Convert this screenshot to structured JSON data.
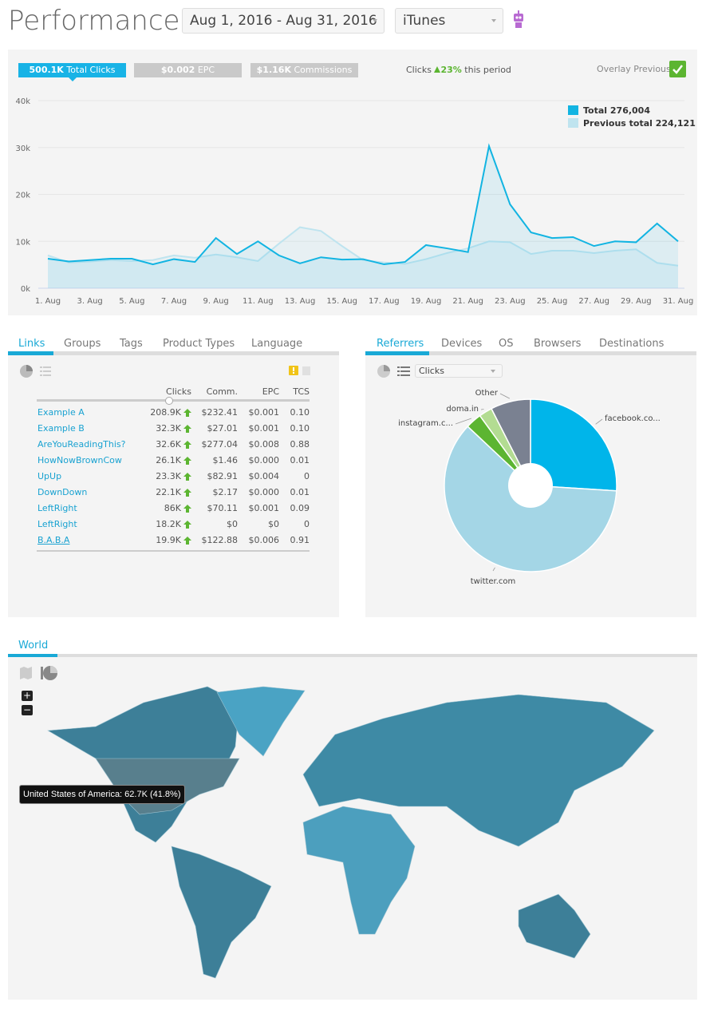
{
  "header": {
    "title": "Performance",
    "date_range": "Aug 1, 2016 - Aug 31, 2016",
    "app": "iTunes"
  },
  "summary": {
    "pills": [
      {
        "value": "500.1K",
        "label": "Total Clicks"
      },
      {
        "value": "$0.002",
        "label": "EPC"
      },
      {
        "value": "$1.16K",
        "label": "Commissions"
      }
    ],
    "change": {
      "label": "Clicks",
      "value": "23%",
      "suffix": "this period"
    },
    "overlay": "Overlay Previous"
  },
  "chart_data": [
    {
      "type": "line",
      "categories": [
        "1. Aug",
        null,
        "3. Aug",
        null,
        "5. Aug",
        null,
        "7. Aug",
        null,
        "9. Aug",
        null,
        "11. Aug",
        null,
        "13. Aug",
        null,
        "15. Aug",
        null,
        "17. Aug",
        null,
        "19. Aug",
        null,
        "21. Aug",
        null,
        "23. Aug",
        null,
        "25. Aug",
        null,
        "27. Aug",
        null,
        "29. Aug",
        null,
        "31. Aug"
      ],
      "ylim": [
        0,
        40000
      ],
      "yticks": [
        {
          "value": 0,
          "label": "0k"
        },
        {
          "value": 10000,
          "label": "10k"
        },
        {
          "value": 20000,
          "label": "20k"
        },
        {
          "value": 30000,
          "label": "30k"
        },
        {
          "value": 40000,
          "label": "40k"
        }
      ],
      "grid": true,
      "legend": "top-right",
      "series": [
        {
          "name": "Total 276,004",
          "color": "#12b4e2",
          "values": [
            6300,
            5700,
            6000,
            6300,
            6300,
            5100,
            6200,
            5600,
            10700,
            7300,
            10000,
            7000,
            5300,
            6600,
            6100,
            6200,
            5100,
            5600,
            9200,
            8500,
            7700,
            30300,
            17900,
            11900,
            10700,
            10900,
            9000,
            10000,
            9800,
            13800,
            10000
          ]
        },
        {
          "name": "Previous total 224,121",
          "color": "#bfe4ef",
          "values": [
            7000,
            5500,
            5700,
            6000,
            5800,
            6000,
            7000,
            6500,
            7200,
            6600,
            5800,
            9500,
            13000,
            12200,
            9000,
            6000,
            5500,
            5200,
            6200,
            7500,
            8500,
            10000,
            9800,
            7300,
            8000,
            8000,
            7500,
            8000,
            8300,
            5400,
            4800
          ]
        }
      ]
    },
    {
      "type": "pie",
      "metric": "Clicks",
      "categories": [
        "facebook.co...",
        "twitter.com",
        "instagram.c...",
        "doma.in",
        "Other"
      ],
      "values": [
        26,
        61,
        3,
        2.5,
        7.5
      ],
      "colors": [
        "#00b5ea",
        "#a4d6e6",
        "#5cb531",
        "#b3dc92",
        "#7a8191"
      ]
    }
  ],
  "links": {
    "tabs": [
      "Links",
      "Groups",
      "Tags",
      "Product Types",
      "Language"
    ],
    "columns": [
      "Clicks",
      "Comm.",
      "EPC",
      "TCS"
    ],
    "rows": [
      [
        "Example A",
        "208.9K",
        "$232.41",
        "$0.001",
        "0.10"
      ],
      [
        "Example B",
        "32.3K",
        "$27.01",
        "$0.001",
        "0.10"
      ],
      [
        "AreYouReadingThis?",
        "32.6K",
        "$277.04",
        "$0.008",
        "0.88"
      ],
      [
        "HowNowBrownCow",
        "26.1K",
        "$1.46",
        "$0.000",
        "0.01"
      ],
      [
        "UpUp",
        "23.3K",
        "$82.91",
        "$0.004",
        "0"
      ],
      [
        "DownDown",
        "22.1K",
        "$2.17",
        "$0.000",
        "0.01"
      ],
      [
        "LeftRight",
        "86K",
        "$70.11",
        "$0.001",
        "0.09"
      ],
      [
        "LeftRight",
        "18.2K",
        "$0",
        "$0",
        "0"
      ],
      [
        "B.A.B.A",
        "19.9K",
        "$122.88",
        "$0.006",
        "0.91"
      ]
    ]
  },
  "referrers": {
    "tabs": [
      "Referrers",
      "Devices",
      "OS",
      "Browsers",
      "Destinations"
    ]
  },
  "world": {
    "tab": "World",
    "zoom_in": "+",
    "zoom_out": "−",
    "tooltip": "United States of America: 62.7K (41.8%)"
  }
}
